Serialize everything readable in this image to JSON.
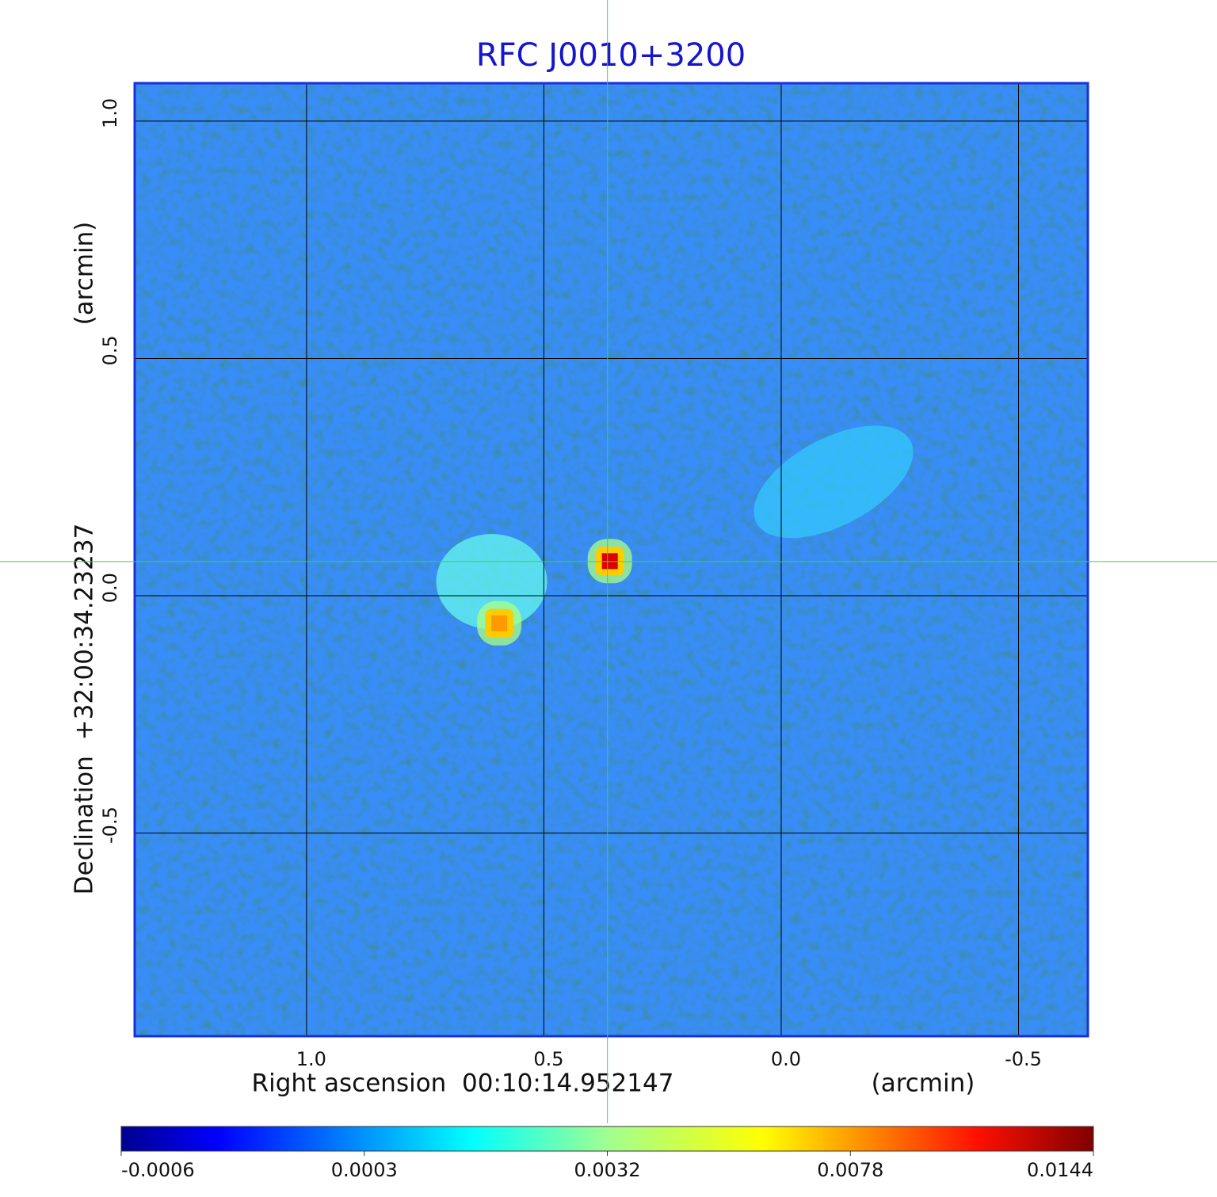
{
  "chart_data": {
    "type": "image",
    "title": "RFC J0010+3200",
    "x_label": "Right ascension  00:10:14.952147",
    "x_unit": "(arcmin)",
    "y_label": "Declination  +32:00:34.23237",
    "y_unit": "(arcmin)",
    "xlim": [
      1.362,
      -0.646
    ],
    "ylim": [
      -0.928,
      1.08
    ],
    "xticks": [
      {
        "value": 1,
        "label": "1.0"
      },
      0.5,
      {
        "value": 0,
        "label": "0.0"
      },
      -0.5
    ],
    "yticks": [
      {
        "value": 1,
        "label": "1.0"
      },
      0.5,
      {
        "value": 0,
        "label": "0.0"
      },
      -0.5
    ],
    "grid": true,
    "crosshair": {
      "x": 0.366,
      "y": 0.072,
      "color": "#33dd33"
    },
    "sources": [
      {
        "x": 0.61,
        "y": 0.03,
        "color": "#66ffee"
      },
      {
        "x": -0.11,
        "y": 0.24,
        "color": "#33ccff"
      },
      {
        "x": 0.594,
        "y": -0.058,
        "color": "#ff9900"
      },
      {
        "x": 0.361,
        "y": 0.073,
        "color": "#dd0000"
      }
    ],
    "colorbar": {
      "ticks": [
        -0.0006,
        0.0003,
        0.0032,
        0.0078,
        0.0144
      ]
    }
  }
}
